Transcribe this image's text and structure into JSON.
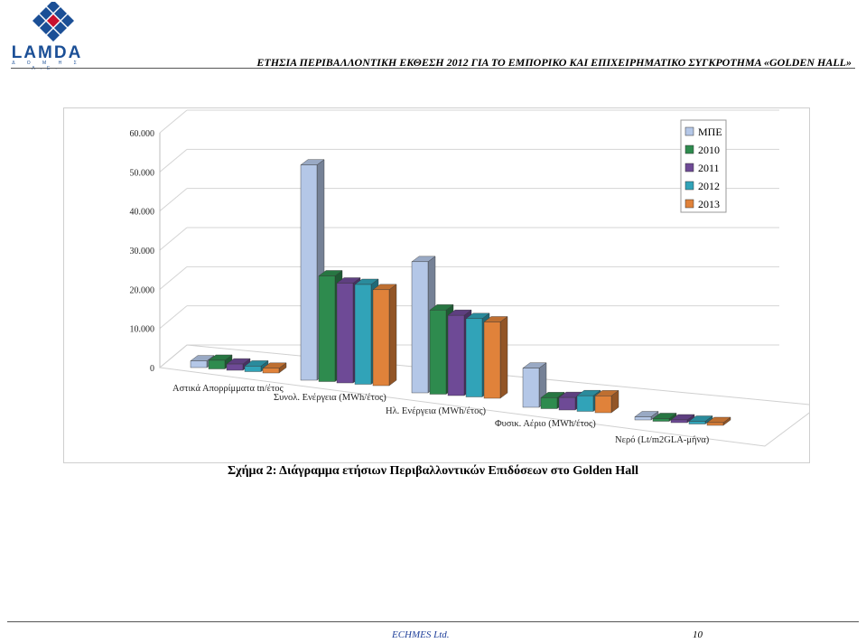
{
  "header": {
    "logo_text": "LAMDA",
    "logo_subtext": "Δ Ο Μ Η Σ Α.Ε.",
    "title": "ΕΤΗΣΙΑ ΠΕΡΙΒΑΛΛΟΝΤΙΚΗ ΕΚΘΕΣΗ 2012 ΓΙΑ ΤΟ ΕΜΠΟΡΙΚΟ ΚΑΙ ΕΠΙΧΕΙΡΗΜΑΤΙΚΟ ΣΥΓΚΡΟΤΗΜΑ «GOLDEN HALL»",
    "brand_color": "#1b4f96",
    "accent_color": "#c8102e"
  },
  "chart_data": {
    "type": "bar",
    "title": "",
    "xlabel": "",
    "ylabel": "",
    "ylim": [
      0,
      60000
    ],
    "yticks": [
      "0",
      "10.000",
      "20.000",
      "30.000",
      "40.000",
      "50.000",
      "60.000"
    ],
    "grid": true,
    "legend_position": "top-right",
    "categories": [
      "Αστικά Απορρίμματα tn/έτος",
      "Συνολ. Ενέργεια (MWh/έτος)",
      "Ηλ. Ενέργεια (MWh/έτος)",
      "Φυσικ. Αέριο (MWh/έτος)",
      "Νερό (Lt/m2GLA-μήνα)"
    ],
    "series": [
      {
        "name": "ΜΠΕ",
        "color": "#b4c7e7",
        "values": [
          1700,
          55000,
          33500,
          10000,
          800
        ]
      },
      {
        "name": "2010",
        "color": "#2e8b4e",
        "values": [
          2200,
          27000,
          21500,
          2800,
          700
        ]
      },
      {
        "name": "2011",
        "color": "#6e4a96",
        "values": [
          1600,
          25500,
          20500,
          3200,
          650
        ]
      },
      {
        "name": "2012",
        "color": "#31a3b8",
        "values": [
          1400,
          25500,
          20000,
          4000,
          600
        ]
      },
      {
        "name": "2013",
        "color": "#e0823a",
        "values": [
          1200,
          24500,
          19500,
          4300,
          620
        ]
      }
    ]
  },
  "caption": "Σχήμα 2: Διάγραμμα ετήσιων Περιβαλλοντικών Επιδόσεων στο Golden Hall",
  "footer": {
    "company": "ECHMES Ltd.",
    "page": "10"
  }
}
